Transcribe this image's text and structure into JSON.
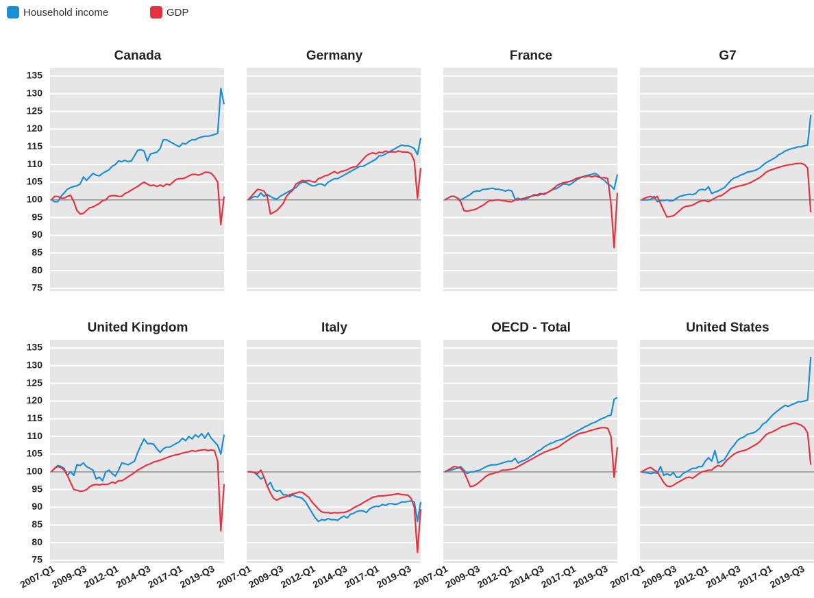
{
  "chart_data": {
    "type": "line",
    "series": [
      {
        "name": "Household income",
        "color": "#1b8fd6"
      },
      {
        "name": "GDP",
        "color": "#e5323f"
      }
    ],
    "categories": [
      "2007-Q1",
      null,
      null,
      null,
      null,
      null,
      null,
      null,
      null,
      null,
      "2009-Q3",
      null,
      null,
      null,
      null,
      null,
      null,
      null,
      null,
      null,
      "2012-Q1",
      null,
      null,
      null,
      null,
      null,
      null,
      null,
      null,
      null,
      "2014-Q3",
      null,
      null,
      null,
      null,
      null,
      null,
      null,
      null,
      null,
      "2017-Q1",
      null,
      null,
      null,
      null,
      null,
      null,
      null,
      null,
      null,
      "2019-Q3",
      null,
      null,
      null,
      null
    ],
    "ylim": [
      75,
      135
    ],
    "yticks": [
      75,
      80,
      85,
      90,
      95,
      100,
      105,
      110,
      115,
      120,
      125,
      130,
      135
    ],
    "baseline": 100,
    "grid": true,
    "panels": [
      {
        "title": "Canada",
        "values": [
          [
            100,
            99.5,
            99.5,
            101,
            102,
            103,
            103.5,
            103.8,
            104,
            104.5,
            106.5,
            105.5,
            106.5,
            107.5,
            107,
            106.8,
            107.5,
            108,
            108.5,
            109.5,
            110,
            111,
            110.8,
            111.2,
            110.8,
            111,
            112.5,
            114,
            114.2,
            113.8,
            111,
            113,
            113.2,
            113.5,
            114.5,
            117,
            117,
            116.5,
            116,
            115.5,
            115,
            116,
            115.8,
            116.5,
            117,
            117,
            117.5,
            117.8,
            118,
            118,
            118.2,
            118.5,
            118.8,
            131.5,
            127
          ],
          [
            100,
            101,
            101,
            100.5,
            100.5,
            101,
            101.3,
            99.5,
            97,
            96,
            96.2,
            97,
            97.8,
            98,
            98.5,
            99,
            99.8,
            100,
            101,
            101.2,
            101.2,
            101,
            101,
            101.8,
            102.2,
            102.8,
            103.3,
            103.8,
            104.5,
            105,
            104.5,
            104,
            104.2,
            103.8,
            104.2,
            103.8,
            104.5,
            104.2,
            105,
            105.8,
            106,
            106,
            106.3,
            106.8,
            107.2,
            107.2,
            107,
            107.3,
            107.8,
            107.8,
            107.5,
            106.5,
            105,
            93,
            101
          ]
        ]
      },
      {
        "title": "Germany",
        "values": [
          [
            100,
            100.5,
            101,
            100.8,
            102,
            101,
            101.5,
            101,
            100.5,
            100.2,
            101,
            101.5,
            102,
            102.5,
            103,
            103.5,
            104.5,
            105,
            105,
            104.5,
            104,
            104,
            104.5,
            104.5,
            104,
            105,
            105.5,
            106,
            106,
            106.5,
            107,
            107.5,
            108,
            108.5,
            109,
            109.5,
            109.5,
            110,
            110.5,
            111,
            111.5,
            112.5,
            112.5,
            113,
            113.5,
            114,
            114.5,
            115,
            115.5,
            115.3,
            115.3,
            115,
            114.5,
            112.8,
            117.5
          ],
          [
            100,
            101,
            102,
            103,
            102.8,
            102.5,
            101,
            96,
            96.5,
            97,
            98,
            99,
            101,
            102,
            102.8,
            104.5,
            105,
            105.5,
            105.3,
            105.5,
            105.2,
            105,
            106,
            106.3,
            106.8,
            107,
            107.5,
            108,
            107.5,
            108,
            108.2,
            108.5,
            109,
            109.3,
            109.5,
            110.5,
            111.5,
            112.5,
            113,
            113.3,
            113,
            113.5,
            113.3,
            113.8,
            113.5,
            113.6,
            113.5,
            113.8,
            113.6,
            113.5,
            113.5,
            113,
            111,
            100.5,
            109
          ]
        ]
      },
      {
        "title": "France",
        "values": [
          [
            100,
            100.5,
            101,
            101,
            100.5,
            100,
            100.5,
            101,
            101.5,
            102.3,
            102.5,
            102.5,
            103,
            103,
            103.2,
            103.3,
            103,
            103,
            102.8,
            102.5,
            102.8,
            102.5,
            100.2,
            100.5,
            100,
            100.2,
            100.5,
            101,
            101.5,
            101.2,
            101.5,
            101.8,
            102,
            102.5,
            103,
            103.2,
            103.8,
            104.5,
            104.5,
            104.2,
            104.8,
            105.5,
            106,
            106.5,
            106.8,
            107,
            107.2,
            107.5,
            107,
            106,
            105.5,
            104.5,
            104,
            103,
            107.2
          ],
          [
            100,
            100.5,
            101,
            101,
            100.5,
            99.5,
            97,
            96.8,
            97,
            97.2,
            97.5,
            98,
            98.5,
            99.2,
            99.8,
            99.8,
            100,
            100,
            99.8,
            99.7,
            99.5,
            99.5,
            100,
            100,
            100.3,
            100.5,
            100.8,
            101,
            101.2,
            101.5,
            101.8,
            101.5,
            102,
            102.5,
            103.2,
            104,
            104.5,
            104.8,
            105,
            105.2,
            105.5,
            106,
            106.3,
            106.5,
            106.5,
            106.8,
            106.5,
            106.8,
            106.5,
            106.2,
            106.3,
            106,
            99,
            86.5,
            102
          ]
        ]
      },
      {
        "title": "G7",
        "values": [
          [
            100,
            100,
            100,
            100.2,
            101,
            99.5,
            99.8,
            99.8,
            100,
            99.7,
            99.8,
            100.5,
            101,
            101.2,
            101.5,
            101.6,
            101.5,
            101.8,
            102.8,
            103,
            102.8,
            103.7,
            101.8,
            102.2,
            102.5,
            103,
            103.5,
            104.5,
            105.5,
            106.2,
            106.5,
            107,
            107.3,
            107.8,
            108,
            108.2,
            108.5,
            109,
            109.8,
            110.5,
            111,
            111.5,
            112,
            112.8,
            113.2,
            113.8,
            114.2,
            114.5,
            114.7,
            115,
            115,
            115.3,
            115.5,
            124,
            null
          ],
          [
            100,
            100.5,
            100.8,
            101,
            100.5,
            101,
            99,
            97,
            95.2,
            95.3,
            95.5,
            96.2,
            97,
            97.8,
            98.2,
            98.3,
            98.5,
            99,
            99.5,
            99.8,
            99.8,
            99.5,
            100,
            100.5,
            101,
            101.2,
            101.8,
            102.5,
            103.2,
            103.5,
            103.8,
            104,
            104.2,
            104.5,
            104.8,
            105.3,
            105.8,
            106.3,
            107,
            107.8,
            108.3,
            108.6,
            108.9,
            109.2,
            109.5,
            109.7,
            109.9,
            110,
            110.2,
            110.3,
            110.3,
            110,
            109,
            96.5,
            null
          ]
        ]
      },
      {
        "title": "United Kingdom",
        "values": [
          [
            100,
            101,
            101.8,
            101.5,
            101,
            99,
            100,
            99,
            102,
            101.8,
            102.5,
            101.5,
            101,
            100.5,
            98,
            98.5,
            97.5,
            100,
            100.5,
            99.5,
            98.8,
            100.5,
            102.5,
            102.3,
            102,
            102.5,
            103,
            105.5,
            107.5,
            109.3,
            108,
            108,
            107.8,
            106.5,
            105.5,
            106.5,
            107,
            107,
            107.5,
            108,
            108.5,
            109.5,
            108.8,
            110,
            109.3,
            110.5,
            109.8,
            110.8,
            109.5,
            111,
            109.5,
            108.5,
            107.5,
            105,
            110.5
          ],
          [
            100,
            101,
            101.5,
            101.2,
            100.5,
            99,
            97,
            95,
            94.8,
            94.5,
            94.6,
            95,
            95.8,
            96.3,
            96.4,
            96.3,
            96.5,
            96.4,
            96.6,
            97.1,
            96.8,
            97.5,
            97.5,
            98,
            98.6,
            99.2,
            99.8,
            100.5,
            101,
            101.5,
            102,
            102.3,
            102.8,
            103,
            103.3,
            103.6,
            104,
            104.3,
            104.6,
            104.8,
            105,
            105.3,
            105.5,
            105.7,
            106,
            105.8,
            106,
            106.2,
            106.3,
            106,
            106.2,
            106,
            103,
            83.3,
            96.5
          ]
        ]
      },
      {
        "title": "Italy",
        "values": [
          [
            100,
            100,
            99.8,
            99,
            98,
            98.5,
            96,
            97,
            95,
            94.5,
            94.8,
            93.5,
            93.5,
            93,
            93.5,
            93,
            92.8,
            92.5,
            91.5,
            90,
            88.5,
            87,
            86,
            86.5,
            86.3,
            86.8,
            86.5,
            86.5,
            86.3,
            87,
            87.5,
            87,
            88,
            88.3,
            88.8,
            89,
            89,
            88.5,
            89.5,
            90,
            90.3,
            90.2,
            90.8,
            90.5,
            91,
            91,
            90.8,
            91,
            91.5,
            91.5,
            91.6,
            91.8,
            91.5,
            86,
            91.5
          ],
          [
            100,
            100,
            99.8,
            99.5,
            100.5,
            98.5,
            96,
            94,
            92.5,
            92,
            92.5,
            92.8,
            93,
            93.5,
            93.8,
            94,
            94.3,
            94.2,
            93.5,
            92.8,
            91.5,
            90.5,
            89.5,
            88.7,
            88.5,
            88.5,
            88.3,
            88.5,
            88.4,
            88.5,
            88.5,
            88.8,
            89.2,
            89.8,
            90.3,
            90.7,
            91.3,
            91.8,
            92.3,
            92.8,
            93,
            93.2,
            93.2,
            93.3,
            93.4,
            93.5,
            93.7,
            93.8,
            93.6,
            93.5,
            93.4,
            92.5,
            90,
            77.2,
            89.5
          ]
        ]
      },
      {
        "title": "OECD - Total",
        "values": [
          [
            100,
            100.3,
            100.5,
            100.8,
            101,
            101.5,
            100.5,
            99.5,
            100,
            100,
            100.3,
            100.5,
            101,
            101.5,
            101.8,
            102,
            102,
            102.2,
            102.5,
            102.8,
            103,
            103,
            103.8,
            102.5,
            103,
            103.3,
            103.8,
            104.5,
            105,
            105.8,
            106.2,
            107,
            107.5,
            108,
            108.3,
            108.8,
            109,
            109.3,
            109.8,
            110.3,
            110.8,
            111.3,
            111.8,
            112.3,
            112.8,
            113.2,
            113.7,
            114,
            114.5,
            115,
            115.3,
            115.8,
            116,
            120.5,
            121
          ],
          [
            100,
            100.5,
            101,
            101.5,
            101.3,
            101,
            100,
            98,
            95.8,
            96,
            96.5,
            97.2,
            98,
            98.8,
            99.3,
            99.5,
            99.8,
            100,
            100.5,
            100.5,
            100.6,
            100.8,
            101,
            101.5,
            102,
            102.5,
            103,
            103.5,
            104,
            104.5,
            105,
            105.5,
            105.8,
            106.2,
            106.5,
            106.8,
            107.3,
            108,
            108.6,
            109.2,
            109.8,
            110.3,
            110.8,
            111,
            111.2,
            111.5,
            111.8,
            112,
            112.3,
            112.5,
            112.5,
            112.3,
            110,
            98.5,
            107
          ]
        ]
      },
      {
        "title": "United States",
        "values": [
          [
            100,
            99.8,
            99.7,
            99.5,
            99.8,
            99.6,
            101.5,
            99,
            99.5,
            99,
            99.8,
            98.5,
            98.5,
            99.5,
            100,
            100.5,
            101,
            101,
            101.5,
            101.5,
            103,
            104,
            103,
            106,
            102.5,
            103,
            103.5,
            105,
            106.5,
            107.5,
            108.8,
            109.5,
            109.8,
            110.5,
            110.8,
            111,
            111.5,
            112.3,
            113.5,
            114,
            115,
            116,
            116.8,
            117.5,
            118.2,
            118.8,
            118.5,
            119,
            119.3,
            119.8,
            119.8,
            120,
            120.3,
            132.5,
            null
          ],
          [
            100,
            100.5,
            101,
            101.2,
            100.5,
            100,
            98.5,
            97,
            96,
            95.8,
            96.2,
            96.8,
            97.3,
            97.8,
            98.3,
            98.5,
            98.2,
            98.8,
            99.5,
            100,
            100.2,
            100.5,
            100.5,
            101.3,
            101.8,
            101.5,
            102.5,
            103.5,
            104.3,
            105,
            105.5,
            105.8,
            106,
            106.3,
            106.8,
            107.3,
            107.8,
            108.5,
            109.5,
            110.5,
            111,
            111.3,
            111.8,
            112.3,
            112.8,
            113,
            113.3,
            113.6,
            113.8,
            113.5,
            113.2,
            112.5,
            111,
            102,
            null
          ]
        ]
      }
    ]
  }
}
